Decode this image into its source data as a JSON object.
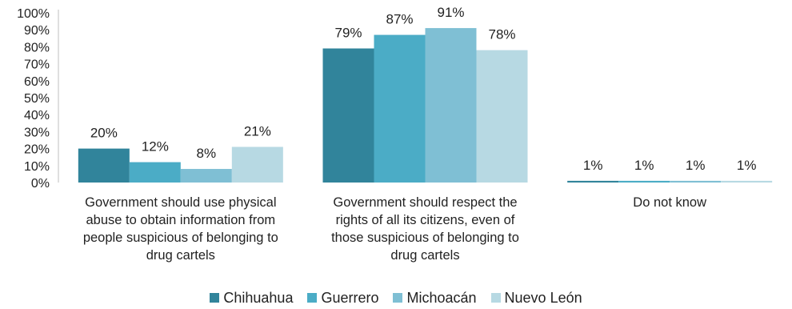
{
  "chart_data": {
    "type": "bar",
    "categories": [
      "Government should use physical abuse to obtain information from people suspicious of belonging to drug cartels",
      "Government should respect the rights of all its citizens, even of those suspicious of belonging to drug cartels",
      "Do not know"
    ],
    "category_lines": [
      [
        "Government should use physical",
        "abuse to obtain information from",
        "people suspicious of belonging to",
        "drug cartels"
      ],
      [
        "Government should respect the",
        "rights of all its citizens, even of",
        "those suspicious of belonging to",
        "drug cartels"
      ],
      [
        "Do not know"
      ]
    ],
    "series": [
      {
        "name": "Chihuahua",
        "values": [
          20,
          79,
          1
        ],
        "color": "#31849b"
      },
      {
        "name": "Guerrero",
        "values": [
          12,
          87,
          1
        ],
        "color": "#4bacc6"
      },
      {
        "name": "Michoacán",
        "values": [
          8,
          91,
          1
        ],
        "color": "#7fbfd4"
      },
      {
        "name": "Nuevo León",
        "values": [
          21,
          78,
          1
        ],
        "color": "#b7d9e3"
      }
    ],
    "ylim": [
      0,
      100
    ],
    "yticks": [
      "0%",
      "10%",
      "20%",
      "30%",
      "40%",
      "50%",
      "60%",
      "70%",
      "80%",
      "90%",
      "100%"
    ],
    "value_suffix": "%",
    "legend_position": "bottom",
    "grid": false
  }
}
